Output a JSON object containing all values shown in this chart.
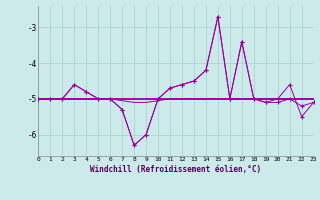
{
  "xlabel": "Windchill (Refroidissement éolien,°C)",
  "background_color": "#cceaea",
  "grid_color": "#aacccc",
  "line_color": "#990099",
  "x": [
    0,
    1,
    2,
    3,
    4,
    5,
    6,
    7,
    8,
    9,
    10,
    11,
    12,
    13,
    14,
    15,
    16,
    17,
    18,
    19,
    20,
    21,
    22,
    23
  ],
  "series1": [
    -5.0,
    -5.0,
    -5.0,
    -4.6,
    -4.8,
    -5.0,
    -5.0,
    -5.3,
    -6.3,
    -6.0,
    -5.0,
    -4.7,
    -4.6,
    -4.5,
    -4.2,
    -2.7,
    -5.0,
    -3.4,
    -5.0,
    -5.1,
    -5.1,
    -5.0,
    -5.2,
    -5.1
  ],
  "series2": [
    -5.0,
    -5.0,
    -5.0,
    -4.6,
    -4.8,
    -5.0,
    -5.0,
    -5.3,
    -6.3,
    -6.0,
    -5.0,
    -4.7,
    -4.6,
    -4.5,
    -4.2,
    -2.7,
    -5.0,
    -3.4,
    -5.0,
    -5.1,
    -5.0,
    -4.6,
    -5.5,
    -5.1
  ],
  "series3": [
    -5.0,
    -5.0,
    -5.0,
    -5.0,
    -5.0,
    -5.0,
    -5.0,
    -5.0,
    -5.0,
    -5.0,
    -5.0,
    -5.0,
    -5.0,
    -5.0,
    -5.0,
    -5.0,
    -5.0,
    -5.0,
    -5.0,
    -5.0,
    -5.0,
    -5.0,
    -5.0,
    -5.0
  ],
  "series4": [
    -5.0,
    -5.0,
    -5.0,
    -5.0,
    -5.0,
    -5.0,
    -5.0,
    -5.05,
    -5.1,
    -5.1,
    -5.05,
    -5.0,
    -5.0,
    -5.0,
    -5.0,
    -5.0,
    -5.0,
    -5.0,
    -5.0,
    -5.0,
    -5.0,
    -5.0,
    -5.0,
    -5.0
  ],
  "ylim": [
    -6.6,
    -2.4
  ],
  "yticks": [
    -6,
    -5,
    -4,
    -3
  ],
  "xlim": [
    0,
    23
  ]
}
